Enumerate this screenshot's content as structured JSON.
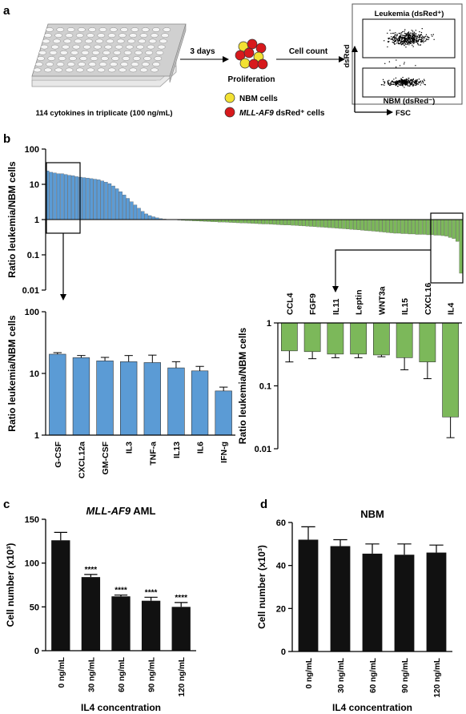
{
  "panel_a": {
    "label": "a",
    "plate_caption": "114 cytokines in triplicate (100 ng/mL)",
    "arrow1_label": "3 days",
    "proliferation_label": "Proliferation",
    "arrow2_label": "Cell count",
    "legend": [
      {
        "label": "NBM cells",
        "color": "#f2e133"
      },
      {
        "label_italic": "MLL-AF9",
        "label_rest": " dsRed⁺ cells",
        "color": "#d7191c"
      }
    ],
    "facs": {
      "y_axis": "dsRed",
      "x_axis": "FSC",
      "gate_top": "Leukemia (dsRed⁺)",
      "gate_bottom": "NBM (dsRed⁻)"
    }
  },
  "panel_b": {
    "label": "b"
  },
  "panel_c": {
    "label": "c"
  },
  "panel_d": {
    "label": "d"
  },
  "chart_data": [
    {
      "id": "b_overview",
      "type": "bar",
      "scale": "log",
      "ylabel": "Ratio leukemia/NBM cells",
      "ylim": [
        0.01,
        100
      ],
      "yticks": [
        "100",
        "10",
        "1",
        "0.1",
        "0.01"
      ],
      "n_cytokines": 114,
      "values": [
        24,
        22,
        21,
        20,
        20,
        19,
        18,
        17.5,
        16.5,
        16,
        15.5,
        15,
        14.5,
        14,
        13.5,
        12.5,
        11.5,
        10.5,
        9,
        7.5,
        6.2,
        5,
        4,
        3.2,
        2.6,
        2.1,
        1.7,
        1.45,
        1.3,
        1.2,
        1.12,
        1.06,
        1.03,
        1.01,
        1.0,
        0.99,
        0.97,
        0.95,
        0.94,
        0.93,
        0.92,
        0.91,
        0.9,
        0.89,
        0.88,
        0.87,
        0.86,
        0.85,
        0.85,
        0.84,
        0.83,
        0.82,
        0.81,
        0.8,
        0.8,
        0.79,
        0.78,
        0.77,
        0.76,
        0.75,
        0.75,
        0.74,
        0.73,
        0.72,
        0.71,
        0.7,
        0.7,
        0.69,
        0.68,
        0.67,
        0.66,
        0.65,
        0.64,
        0.63,
        0.62,
        0.61,
        0.6,
        0.59,
        0.58,
        0.57,
        0.56,
        0.55,
        0.54,
        0.53,
        0.52,
        0.51,
        0.5,
        0.49,
        0.48,
        0.47,
        0.46,
        0.45,
        0.44,
        0.43,
        0.42,
        0.41,
        0.41,
        0.4,
        0.4,
        0.39,
        0.39,
        0.38,
        0.38,
        0.38,
        0.37,
        0.37,
        0.36,
        0.36,
        0.35,
        0.34,
        0.31,
        0.29,
        0.24,
        0.03
      ]
    },
    {
      "id": "b_top",
      "type": "bar",
      "scale": "log",
      "ylabel": "Ratio leukemia/NBM cells",
      "ylim": [
        1,
        100
      ],
      "yticks": [
        "100",
        "10",
        "1"
      ],
      "categories": [
        "G-CSF",
        "CXCL12a",
        "GM-CSF",
        "IL3",
        "TNF-a",
        "IL13",
        "IL6",
        "IFN-g"
      ],
      "values": [
        20.5,
        18,
        16,
        15.5,
        15,
        12.3,
        11,
        5.2
      ],
      "errors": [
        1.2,
        1.5,
        2.2,
        4.0,
        4.8,
        3.2,
        2.0,
        0.8
      ]
    },
    {
      "id": "b_bottom",
      "type": "bar",
      "scale": "log",
      "ylabel": "Ratio leukemia/NBM cells",
      "ylim": [
        0.01,
        1
      ],
      "yticks": [
        "1",
        "0.1",
        "0.01"
      ],
      "categories": [
        "CCL4",
        "FGF9",
        "IL11",
        "Leptin",
        "WNT3a",
        "IL15",
        "CXCL16",
        "IL4"
      ],
      "values": [
        0.36,
        0.35,
        0.32,
        0.32,
        0.31,
        0.28,
        0.24,
        0.032
      ],
      "errors": [
        0.12,
        0.08,
        0.04,
        0.04,
        0.02,
        0.1,
        0.11,
        0.017
      ]
    },
    {
      "id": "c",
      "type": "bar",
      "title_italic": "MLL-AF9",
      "title_rest": " AML",
      "ylabel": "Cell number (x10³)",
      "xlabel": "IL4 concentration",
      "ylim": [
        0,
        150
      ],
      "yticks": [
        0,
        50,
        100,
        150
      ],
      "categories": [
        "0 ng/mL",
        "30 ng/mL",
        "60 ng/mL",
        "90 ng/mL",
        "120 ng/mL"
      ],
      "values": [
        126,
        84,
        62,
        57,
        50
      ],
      "errors": [
        9,
        3,
        1.5,
        4,
        5
      ],
      "significance": [
        "",
        "****",
        "****",
        "****",
        "****"
      ]
    },
    {
      "id": "d",
      "type": "bar",
      "title": "NBM",
      "ylabel": "Cell number (x10³)",
      "xlabel": "IL4 concentration",
      "ylim": [
        0,
        60
      ],
      "yticks": [
        0,
        20,
        40,
        60
      ],
      "categories": [
        "0 ng/mL",
        "30 ng/mL",
        "60 ng/mL",
        "90 ng/mL",
        "120 ng/mL"
      ],
      "values": [
        52,
        49,
        45.5,
        45,
        46
      ],
      "errors": [
        6,
        3,
        4.5,
        5,
        3.5
      ]
    }
  ]
}
